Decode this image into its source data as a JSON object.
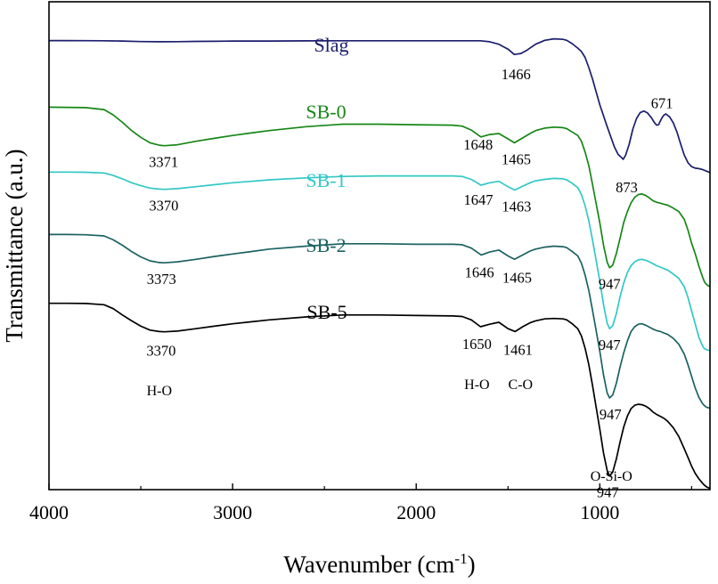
{
  "chart_data": {
    "type": "line",
    "title": "",
    "xlabel": "Wavenumber (cm",
    "xlabel_sup": "-1",
    "xlabel_close": ")",
    "ylabel": "Transmittance (a.u.)",
    "xlim": [
      4000,
      400
    ],
    "x_reversed": true,
    "xticks": [
      4000,
      3000,
      2000,
      1000
    ],
    "xtick_labels": [
      "4000",
      "3000",
      "2000",
      "1000"
    ],
    "y_units": "offset transmittance (arbitrary units, 0 = bottom of frame, 100 = top)",
    "ylim": [
      0,
      100
    ],
    "grid": false,
    "legend": "inline series labels above each curve",
    "series": [
      {
        "name": "Slag",
        "color": "#1c1e6e",
        "x": [
          4000,
          3900,
          3800,
          3700,
          3600,
          3500,
          3400,
          3300,
          3200,
          3100,
          3000,
          2900,
          2800,
          2600,
          2400,
          2200,
          2000,
          1800,
          1700,
          1650,
          1600,
          1550,
          1500,
          1466,
          1430,
          1400,
          1350,
          1300,
          1250,
          1200,
          1180,
          1150,
          1120,
          1100,
          1080,
          1060,
          1040,
          1000,
          960,
          920,
          900,
          880,
          873,
          860,
          840,
          820,
          800,
          780,
          760,
          740,
          720,
          700,
          690,
          680,
          671,
          660,
          650,
          640,
          620,
          600,
          580,
          560,
          540,
          520,
          500,
          480,
          460,
          440,
          420,
          400
        ],
        "values": [
          92.05,
          92.05,
          92.03,
          92.0,
          91.95,
          91.85,
          91.8,
          91.83,
          91.88,
          91.9,
          91.95,
          91.95,
          91.95,
          91.98,
          92.0,
          92.0,
          92.0,
          92.0,
          92.0,
          92.0,
          91.8,
          91.3,
          90.3,
          89.2,
          89.4,
          90.0,
          91.3,
          92.1,
          92.4,
          92.3,
          92.1,
          91.4,
          90.5,
          89.8,
          88.6,
          86.5,
          84.2,
          78.9,
          74.4,
          70.2,
          68.7,
          68.0,
          67.7,
          68.5,
          70.8,
          73.9,
          76.1,
          77.3,
          77.6,
          77.2,
          76.3,
          75.1,
          74.7,
          74.8,
          75.5,
          76.3,
          76.8,
          77.0,
          76.4,
          75.2,
          73.3,
          70.9,
          68.6,
          67.0,
          66.2,
          65.9,
          65.8,
          65.6,
          65.3,
          65.0
        ]
      },
      {
        "name": "SB-0",
        "color": "#168716",
        "x": [
          4000,
          3900,
          3800,
          3700,
          3650,
          3600,
          3550,
          3500,
          3450,
          3400,
          3371,
          3300,
          3200,
          3100,
          3000,
          2900,
          2800,
          2600,
          2400,
          2200,
          2000,
          1800,
          1750,
          1700,
          1648,
          1600,
          1550,
          1500,
          1465,
          1420,
          1380,
          1350,
          1300,
          1250,
          1200,
          1180,
          1150,
          1120,
          1100,
          1080,
          1060,
          1040,
          1000,
          980,
          960,
          947,
          930,
          910,
          890,
          870,
          850,
          830,
          810,
          790,
          770,
          750,
          730,
          710,
          690,
          670,
          650,
          630,
          600,
          570,
          540,
          520,
          500,
          480,
          460,
          440,
          430,
          420,
          410,
          400
        ],
        "values": [
          78.4,
          78.35,
          78.3,
          77.9,
          76.8,
          75.3,
          73.6,
          72.2,
          71.1,
          70.6,
          70.5,
          70.7,
          71.4,
          72.0,
          72.6,
          73.1,
          73.6,
          74.4,
          74.9,
          74.9,
          74.8,
          74.7,
          74.5,
          73.7,
          72.3,
          72.8,
          73.0,
          71.9,
          71.1,
          72.1,
          73.0,
          73.6,
          74.1,
          74.3,
          74.2,
          74.0,
          73.3,
          72.6,
          71.4,
          69.2,
          66.4,
          62.6,
          54.7,
          50.1,
          46.6,
          45.5,
          46.0,
          48.4,
          51.5,
          54.7,
          57.0,
          58.8,
          59.9,
          60.5,
          60.6,
          60.3,
          59.8,
          59.2,
          58.9,
          58.7,
          58.5,
          58.3,
          57.7,
          57.0,
          55.4,
          53.2,
          50.5,
          48.3,
          45.8,
          43.5,
          42.6,
          42.1,
          41.8,
          41.6
        ]
      },
      {
        "name": "SB-1",
        "color": "#33c7c7",
        "x": [
          4000,
          3900,
          3800,
          3700,
          3650,
          3600,
          3550,
          3500,
          3450,
          3400,
          3370,
          3300,
          3200,
          3100,
          3000,
          2900,
          2800,
          2600,
          2400,
          2200,
          2000,
          1800,
          1750,
          1700,
          1647,
          1600,
          1550,
          1500,
          1463,
          1420,
          1380,
          1350,
          1300,
          1250,
          1200,
          1180,
          1150,
          1120,
          1100,
          1080,
          1060,
          1040,
          1000,
          980,
          960,
          947,
          930,
          910,
          890,
          870,
          850,
          830,
          810,
          790,
          770,
          750,
          730,
          710,
          690,
          670,
          650,
          630,
          600,
          570,
          540,
          520,
          500,
          480,
          460,
          440,
          430,
          420,
          410,
          400
        ],
        "values": [
          65.1,
          65.1,
          65.05,
          64.9,
          64.4,
          63.7,
          62.9,
          62.3,
          61.8,
          61.6,
          61.55,
          61.7,
          62.1,
          62.5,
          62.9,
          63.2,
          63.5,
          63.9,
          64.2,
          64.3,
          64.3,
          64.3,
          64.2,
          63.6,
          62.4,
          62.9,
          63.2,
          62.1,
          61.4,
          62.2,
          62.9,
          63.3,
          63.6,
          63.8,
          63.7,
          63.5,
          62.8,
          61.9,
          60.5,
          58.2,
          55.1,
          51.2,
          42.8,
          37.9,
          34.1,
          33.0,
          33.6,
          36.1,
          39.5,
          42.3,
          44.5,
          45.9,
          46.7,
          47.1,
          47.2,
          47.0,
          46.7,
          46.3,
          45.9,
          45.6,
          45.3,
          45.0,
          44.2,
          43.3,
          41.6,
          39.4,
          36.6,
          33.9,
          31.2,
          29.4,
          28.9,
          28.7,
          28.6,
          28.5
        ]
      },
      {
        "name": "SB-2",
        "color": "#1c6262",
        "x": [
          4000,
          3900,
          3800,
          3700,
          3650,
          3600,
          3550,
          3500,
          3450,
          3400,
          3373,
          3300,
          3200,
          3100,
          3000,
          2900,
          2800,
          2600,
          2400,
          2200,
          2000,
          1800,
          1750,
          1700,
          1646,
          1600,
          1550,
          1500,
          1465,
          1420,
          1380,
          1350,
          1300,
          1250,
          1200,
          1180,
          1150,
          1120,
          1100,
          1080,
          1060,
          1040,
          1000,
          980,
          960,
          947,
          930,
          910,
          890,
          870,
          850,
          830,
          810,
          790,
          770,
          750,
          730,
          710,
          690,
          670,
          650,
          630,
          600,
          570,
          540,
          520,
          500,
          480,
          460,
          440,
          430,
          420,
          410,
          400
        ],
        "values": [
          52.3,
          52.3,
          52.25,
          52.0,
          51.2,
          50.1,
          48.8,
          47.7,
          46.9,
          46.55,
          46.5,
          46.7,
          47.2,
          47.8,
          48.3,
          48.8,
          49.3,
          49.9,
          50.4,
          50.4,
          50.3,
          50.3,
          50.2,
          49.5,
          48.1,
          48.7,
          49.1,
          47.9,
          47.2,
          48.1,
          48.9,
          49.3,
          49.7,
          49.9,
          49.8,
          49.6,
          48.8,
          47.9,
          46.4,
          44.0,
          40.8,
          36.8,
          28.4,
          23.5,
          19.8,
          18.8,
          19.4,
          21.8,
          25.1,
          28.0,
          30.5,
          32.4,
          33.4,
          33.9,
          34.0,
          33.7,
          33.3,
          32.9,
          32.6,
          32.4,
          32.1,
          31.8,
          31.0,
          29.8,
          27.8,
          25.6,
          23.2,
          20.8,
          18.9,
          17.6,
          17.2,
          16.9,
          16.8,
          16.7
        ]
      },
      {
        "name": "SB-5",
        "color": "#000000",
        "x": [
          4000,
          3900,
          3800,
          3700,
          3650,
          3600,
          3550,
          3500,
          3450,
          3400,
          3370,
          3300,
          3200,
          3100,
          3000,
          2900,
          2800,
          2600,
          2400,
          2200,
          2000,
          1800,
          1750,
          1700,
          1650,
          1600,
          1550,
          1500,
          1461,
          1420,
          1380,
          1350,
          1300,
          1250,
          1200,
          1180,
          1150,
          1120,
          1100,
          1080,
          1060,
          1040,
          1000,
          980,
          960,
          947,
          930,
          910,
          890,
          870,
          850,
          830,
          810,
          790,
          770,
          750,
          730,
          710,
          690,
          670,
          650,
          630,
          600,
          570,
          540,
          520,
          500,
          480,
          460,
          440,
          430,
          420,
          410,
          400
        ],
        "values": [
          38.2,
          38.2,
          38.15,
          37.9,
          37.1,
          35.8,
          34.6,
          33.5,
          32.7,
          32.4,
          32.35,
          32.5,
          33.0,
          33.5,
          34.0,
          34.4,
          34.8,
          35.4,
          35.8,
          35.8,
          35.7,
          35.6,
          35.5,
          34.8,
          33.4,
          33.9,
          34.3,
          33.0,
          32.4,
          33.4,
          34.2,
          34.6,
          35.0,
          35.1,
          35.0,
          34.8,
          34.0,
          33.0,
          31.5,
          29.0,
          25.6,
          21.4,
          12.4,
          7.5,
          3.9,
          2.8,
          3.6,
          6.3,
          9.7,
          12.8,
          15.1,
          16.6,
          17.3,
          17.5,
          17.4,
          17.1,
          16.6,
          15.9,
          15.4,
          15.0,
          14.6,
          14.0,
          12.7,
          10.9,
          8.4,
          6.6,
          4.8,
          3.3,
          2.2,
          1.3,
          0.9,
          0.6,
          0.4,
          0.3
        ]
      }
    ],
    "series_labels": [
      {
        "text": "Slag",
        "series": "Slag"
      },
      {
        "text": "SB-0",
        "series": "SB-0"
      },
      {
        "text": "SB-1",
        "series": "SB-1"
      },
      {
        "text": "SB-2",
        "series": "SB-2"
      },
      {
        "text": "SB-5",
        "series": "SB-5"
      }
    ],
    "annotations": [
      {
        "text": "1466",
        "series": "Slag",
        "x": 1466
      },
      {
        "text": "873",
        "series": "Slag",
        "x": 873
      },
      {
        "text": "671",
        "series": "Slag",
        "x": 671
      },
      {
        "text": "3371",
        "series": "SB-0",
        "x": 3371
      },
      {
        "text": "1648",
        "series": "SB-0",
        "x": 1648
      },
      {
        "text": "1465",
        "series": "SB-0",
        "x": 1465
      },
      {
        "text": "947",
        "series": "SB-0",
        "x": 947
      },
      {
        "text": "3370",
        "series": "SB-1",
        "x": 3370
      },
      {
        "text": "1647",
        "series": "SB-1",
        "x": 1647
      },
      {
        "text": "1463",
        "series": "SB-1",
        "x": 1463
      },
      {
        "text": "947",
        "series": "SB-1",
        "x": 947
      },
      {
        "text": "3373",
        "series": "SB-2",
        "x": 3373
      },
      {
        "text": "1646",
        "series": "SB-2",
        "x": 1646
      },
      {
        "text": "1465",
        "series": "SB-2",
        "x": 1465
      },
      {
        "text": "947",
        "series": "SB-2",
        "x": 947
      },
      {
        "text": "3370",
        "series": "SB-5",
        "x": 3370
      },
      {
        "text": "1650",
        "series": "SB-5",
        "x": 1650
      },
      {
        "text": "1461",
        "series": "SB-5",
        "x": 1461
      },
      {
        "text": "947",
        "series": "SB-5",
        "x": 947
      }
    ],
    "band_assignments": [
      {
        "text": "H-O",
        "x": 3370
      },
      {
        "text": "H-O",
        "x": 1650
      },
      {
        "text": "C-O",
        "x": 1461
      },
      {
        "text": "O-Si-O",
        "x": 947
      }
    ]
  }
}
